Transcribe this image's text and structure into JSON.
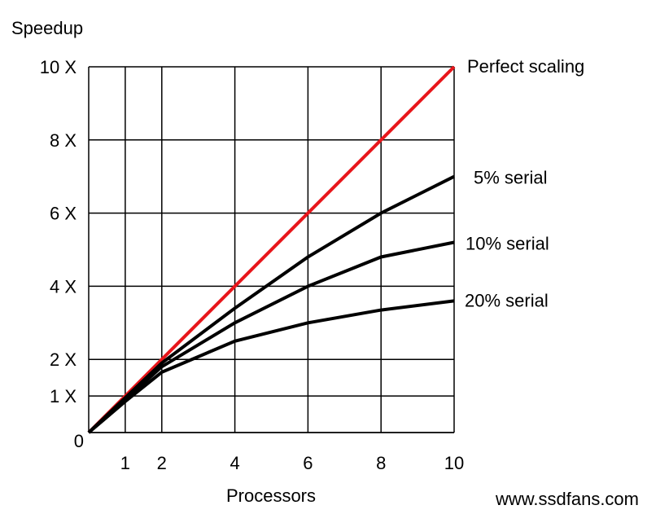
{
  "chart_data": {
    "type": "line",
    "title": "",
    "xlabel": "Processors",
    "ylabel": "Speedup",
    "xlim": [
      0,
      10
    ],
    "ylim": [
      0,
      10
    ],
    "x_ticks": [
      {
        "value": 1,
        "label": "1"
      },
      {
        "value": 2,
        "label": "2"
      },
      {
        "value": 4,
        "label": "4"
      },
      {
        "value": 6,
        "label": "6"
      },
      {
        "value": 8,
        "label": "8"
      },
      {
        "value": 10,
        "label": "10"
      }
    ],
    "y_ticks": [
      {
        "value": 0,
        "label": "0"
      },
      {
        "value": 1,
        "label": "1 X"
      },
      {
        "value": 2,
        "label": "2 X"
      },
      {
        "value": 4,
        "label": "4 X"
      },
      {
        "value": 6,
        "label": "6 X"
      },
      {
        "value": 8,
        "label": "8 X"
      },
      {
        "value": 10,
        "label": "10 X"
      }
    ],
    "grid": true,
    "series": [
      {
        "name": "Perfect scaling",
        "color": "#e8161b",
        "x": [
          0,
          10
        ],
        "y": [
          0,
          10
        ]
      },
      {
        "name": "5% serial",
        "color": "#000000",
        "x": [
          0,
          1,
          2,
          4,
          6,
          8,
          10
        ],
        "y": [
          0,
          0.95,
          1.9,
          3.4,
          4.8,
          6.0,
          7.0
        ]
      },
      {
        "name": "10% serial",
        "color": "#000000",
        "x": [
          0,
          1,
          2,
          4,
          6,
          8,
          10
        ],
        "y": [
          0,
          0.9,
          1.8,
          3.0,
          4.0,
          4.8,
          5.2
        ]
      },
      {
        "name": "20% serial",
        "color": "#000000",
        "x": [
          0,
          1,
          2,
          4,
          6,
          8,
          10
        ],
        "y": [
          0,
          0.85,
          1.65,
          2.5,
          3.0,
          3.35,
          3.6
        ]
      }
    ]
  },
  "watermark": {
    "text": "www.ssdfans.com",
    "color": "#f4a0a8"
  }
}
